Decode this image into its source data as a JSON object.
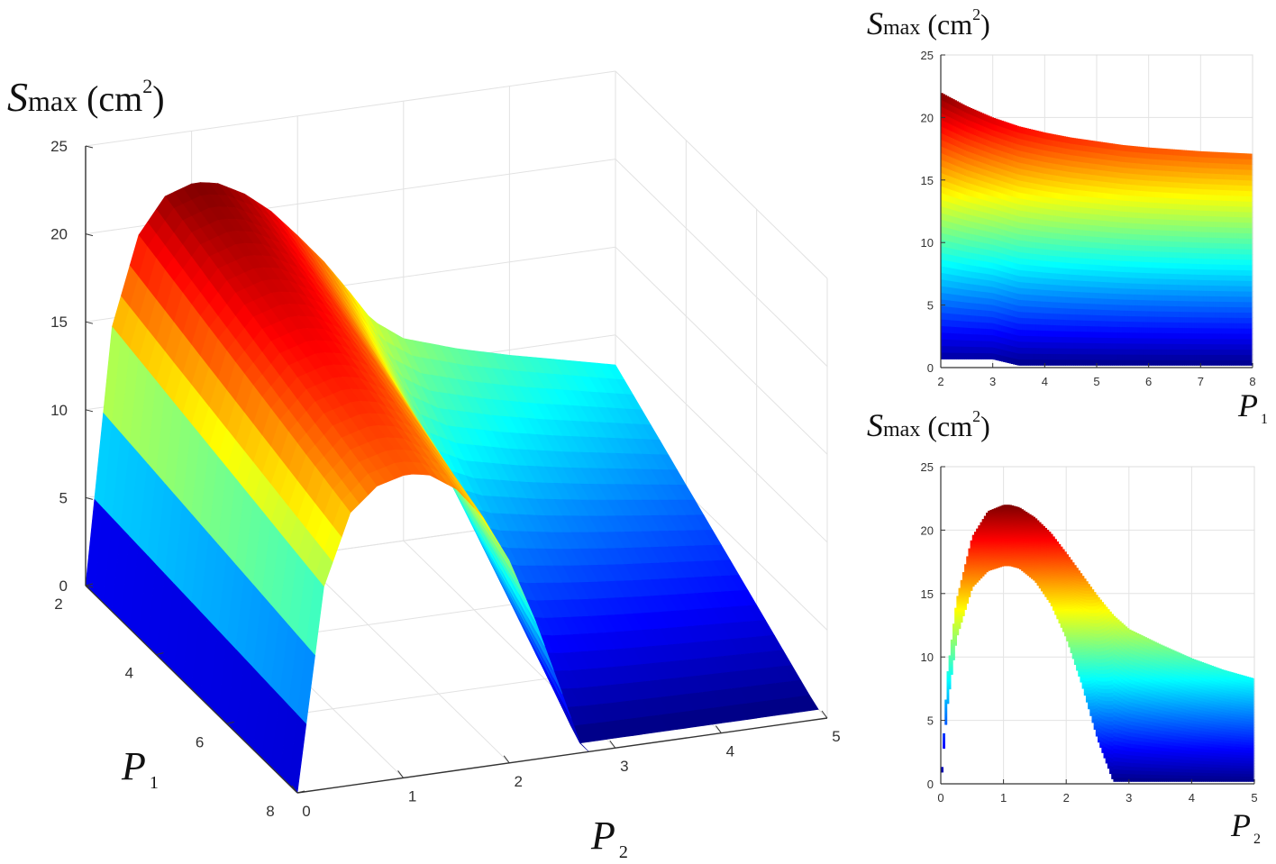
{
  "chart_data": [
    {
      "type": "surface",
      "title": "",
      "zlabel": {
        "symbol": "S",
        "sub": "max",
        "unit": "(cm",
        "sup": "2",
        "close": ")"
      },
      "xlabel": {
        "symbol": "P",
        "sub": "2"
      },
      "ylabel": {
        "symbol": "P",
        "sub": "1"
      },
      "xlim": [
        0,
        5
      ],
      "ylim": [
        2,
        8
      ],
      "zlim": [
        0,
        25
      ],
      "xticks": [
        "0",
        "1",
        "2",
        "3",
        "4",
        "5"
      ],
      "yticks": [
        "2",
        "4",
        "6",
        "8"
      ],
      "zticks": [
        "0",
        "5",
        "10",
        "15",
        "20",
        "25"
      ],
      "grid": true,
      "colormap": "jet",
      "series": [
        {
          "p1": 2,
          "p2": [
            0,
            0.25,
            0.5,
            0.75,
            1.0,
            1.1,
            1.25,
            1.5,
            1.75,
            2.0,
            2.25,
            2.5,
            2.7,
            3.0,
            3.5,
            4.0,
            4.5,
            5.0
          ],
          "s": [
            0,
            14.5,
            19.5,
            21.5,
            22.0,
            22.0,
            21.8,
            21.0,
            19.8,
            18.2,
            16.5,
            14.5,
            12.8,
            11.5,
            10.5,
            9.7,
            9.0,
            8.3
          ]
        },
        {
          "p1": 8,
          "p2": [
            0,
            0.25,
            0.5,
            0.75,
            1.0,
            1.1,
            1.25,
            1.5,
            1.75,
            2.0,
            2.25,
            2.5,
            2.7
          ],
          "s": [
            0,
            11.5,
            15.5,
            16.8,
            17.2,
            17.2,
            17.0,
            16.0,
            14.2,
            11.5,
            7.8,
            3.5,
            0
          ]
        }
      ]
    },
    {
      "type": "area",
      "title": "",
      "ylabel": {
        "symbol": "S",
        "sub": "max",
        "unit": "(cm",
        "sup": "2",
        "close": ")"
      },
      "xlabel": {
        "symbol": "P",
        "sub": "1"
      },
      "xlim": [
        2,
        8
      ],
      "ylim": [
        0,
        25
      ],
      "xticks": [
        "2",
        "3",
        "4",
        "5",
        "6",
        "7",
        "8"
      ],
      "yticks": [
        "0",
        "5",
        "10",
        "15",
        "20",
        "25"
      ],
      "grid": true,
      "colormap": "jet",
      "x": [
        2,
        2.5,
        3,
        3.5,
        4,
        4.5,
        5,
        5.5,
        6,
        6.5,
        7,
        7.5,
        8
      ],
      "upper": [
        22.0,
        20.9,
        20.0,
        19.3,
        18.8,
        18.4,
        18.1,
        17.8,
        17.6,
        17.45,
        17.3,
        17.2,
        17.1
      ],
      "lower": [
        0.7,
        0.7,
        0.7,
        0.2,
        0.2,
        0.2,
        0.2,
        0.2,
        0.2,
        0.2,
        0.2,
        0.2,
        0.2
      ]
    },
    {
      "type": "area",
      "title": "",
      "ylabel": {
        "symbol": "S",
        "sub": "max",
        "unit": "(cm",
        "sup": "2",
        "close": ")"
      },
      "xlabel": {
        "symbol": "P",
        "sub": "2"
      },
      "xlim": [
        0,
        5
      ],
      "ylim": [
        0,
        25
      ],
      "xticks": [
        "0",
        "1",
        "2",
        "3",
        "4",
        "5"
      ],
      "yticks": [
        "0",
        "5",
        "10",
        "15",
        "20",
        "25"
      ],
      "grid": true,
      "colormap": "jet",
      "x": [
        0,
        0.1,
        0.25,
        0.5,
        0.75,
        1.0,
        1.1,
        1.25,
        1.5,
        1.75,
        2.0,
        2.25,
        2.5,
        2.75,
        3.0,
        3.5,
        4.0,
        4.5,
        5.0
      ],
      "upper": [
        0,
        8.5,
        14.5,
        19.5,
        21.5,
        22.0,
        22.0,
        21.8,
        21.0,
        19.8,
        18.2,
        16.5,
        14.8,
        13.3,
        12.2,
        11.0,
        9.9,
        9.0,
        8.3
      ],
      "lower": [
        0,
        6.0,
        11.5,
        15.5,
        16.8,
        17.2,
        17.2,
        17.0,
        16.0,
        14.2,
        11.5,
        7.8,
        3.5,
        0.2,
        0.2,
        0.2,
        0.2,
        0.2,
        0.2
      ]
    }
  ]
}
